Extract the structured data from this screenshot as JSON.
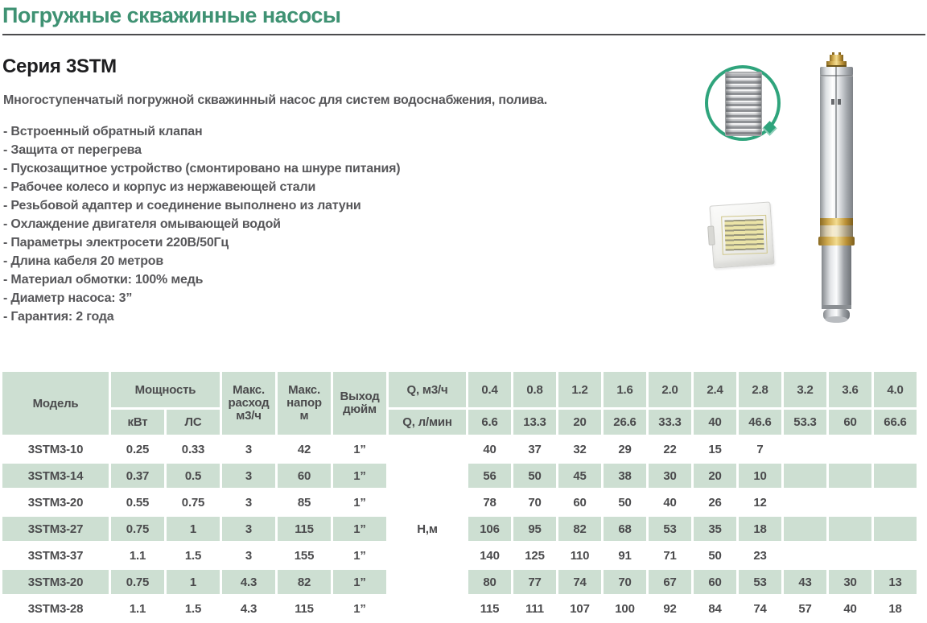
{
  "page": {
    "title": "Погружные скважинные насосы",
    "series": "Серия 3STM",
    "description": "Многоступенчатый погружной скважинный насос для систем водоснабжения, полива.",
    "features": [
      "Встроенный обратный клапан",
      "Защита от перегрева",
      "Пускозащитное устройство (смонтировано на шнуре питания)",
      "Рабочее колесо и корпус из нержавеющей стали",
      "Резьбовой адаптер и соединение выполнено из латуни",
      "Охлаждение двигателя омывающей водой",
      "Параметры электросети 220В/50Гц",
      "Длина кабеля 20 метров",
      "Материал обмотки: 100% медь",
      "Диаметр насоса: 3”",
      "Гарантия: 2 года"
    ]
  },
  "images": {
    "impeller_icon": "multistage-impeller-detail",
    "control_box": "starter-protection-box",
    "pump_photo": "stainless-submersible-pump"
  },
  "table": {
    "col_model": "Модель",
    "col_power": "Мощность",
    "col_power_kw": "кВт",
    "col_power_hp": "ЛС",
    "col_max_flow": "Макс.\nрасход\nм3/ч",
    "col_max_head": "Макс.\nнапор\nм",
    "col_outlet": "Выход\nдюйм",
    "col_q_m3h": "Q, м3/ч",
    "col_q_lmin": "Q, л/мин",
    "head_unit_label": "Н,м",
    "flow_m3h": [
      "0.4",
      "0.8",
      "1.2",
      "1.6",
      "2.0",
      "2.4",
      "2.8",
      "3.2",
      "3.6",
      "4.0"
    ],
    "flow_lmin": [
      "6.6",
      "13.3",
      "20",
      "26.6",
      "33.3",
      "40",
      "46.6",
      "53.3",
      "60",
      "66.6"
    ],
    "rows": [
      {
        "model": "3STM3-10",
        "kw": "0.25",
        "hp": "0.33",
        "max_flow": "3",
        "max_head": "42",
        "outlet": "1”",
        "highlight": false,
        "heads": [
          "40",
          "37",
          "32",
          "29",
          "22",
          "15",
          "7"
        ]
      },
      {
        "model": "3STM3-14",
        "kw": "0.37",
        "hp": "0.5",
        "max_flow": "3",
        "max_head": "60",
        "outlet": "1”",
        "highlight": true,
        "heads": [
          "56",
          "50",
          "45",
          "38",
          "30",
          "20",
          "10"
        ]
      },
      {
        "model": "3STM3-20",
        "kw": "0.55",
        "hp": "0.75",
        "max_flow": "3",
        "max_head": "85",
        "outlet": "1”",
        "highlight": false,
        "heads": [
          "78",
          "70",
          "60",
          "50",
          "40",
          "26",
          "12"
        ]
      },
      {
        "model": "3STM3-27",
        "kw": "0.75",
        "hp": "1",
        "max_flow": "3",
        "max_head": "115",
        "outlet": "1”",
        "highlight": true,
        "heads": [
          "106",
          "95",
          "82",
          "68",
          "53",
          "35",
          "18"
        ]
      },
      {
        "model": "3STM3-37",
        "kw": "1.1",
        "hp": "1.5",
        "max_flow": "3",
        "max_head": "155",
        "outlet": "1”",
        "highlight": false,
        "heads": [
          "140",
          "125",
          "110",
          "91",
          "71",
          "50",
          "23"
        ]
      },
      {
        "model": "3STM3-20",
        "kw": "0.75",
        "hp": "1",
        "max_flow": "4.3",
        "max_head": "82",
        "outlet": "1”",
        "highlight": true,
        "heads": [
          "80",
          "77",
          "74",
          "70",
          "67",
          "60",
          "53",
          "43",
          "30",
          "13"
        ]
      },
      {
        "model": "3STM3-28",
        "kw": "1.1",
        "hp": "1.5",
        "max_flow": "4.3",
        "max_head": "115",
        "outlet": "1”",
        "highlight": false,
        "heads": [
          "115",
          "111",
          "107",
          "100",
          "92",
          "84",
          "74",
          "57",
          "40",
          "18"
        ]
      }
    ]
  },
  "colors": {
    "title_green": "#3f9273",
    "cell_green": "#cddfd2",
    "text_gray": "#4b4b4d",
    "circle_green": "#2fa47c"
  }
}
